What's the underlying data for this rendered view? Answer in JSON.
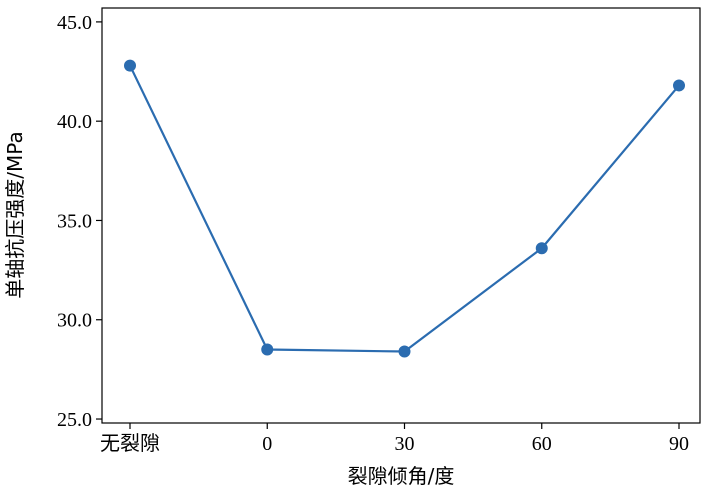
{
  "chart_data": {
    "type": "line",
    "categories": [
      "无裂隙",
      "0",
      "30",
      "60",
      "90"
    ],
    "series": [
      {
        "values": [
          42.8,
          28.5,
          28.4,
          33.6,
          41.8
        ],
        "color": "#2b6cb0"
      }
    ],
    "xlabel": "裂隙倾角/度",
    "ylabel": "单轴抗压强度/MPa",
    "ylim": [
      24.8,
      45.7
    ],
    "yticks": [
      25.0,
      30.0,
      35.0,
      40.0,
      45.0
    ],
    "ytick_labels": [
      "25.0",
      "30.0",
      "35.0",
      "40.0",
      "45.0"
    ],
    "grid": false
  }
}
